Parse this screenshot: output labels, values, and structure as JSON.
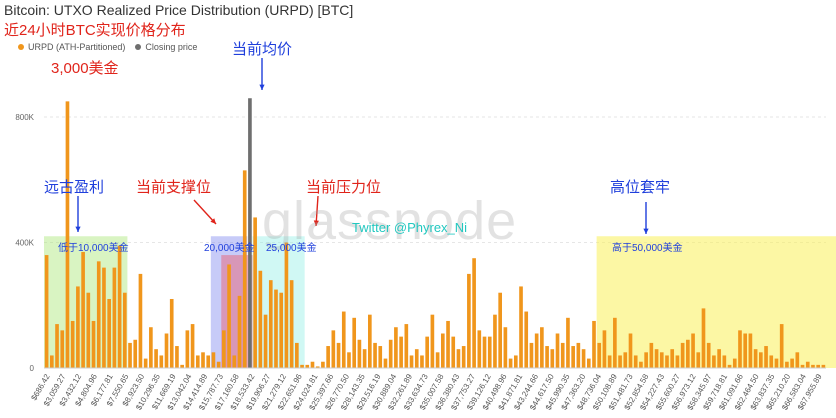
{
  "title": "Bitcoin: UTXO Realized Price Distribution (URPD) [BTC]",
  "subtitle": "近24小时BTC实现价格分布",
  "legend": [
    {
      "label": "URPD (ATH-Partitioned)",
      "color": "#f0961c"
    },
    {
      "label": "Closing price",
      "color": "#6e6e6e"
    }
  ],
  "annotations": {
    "price_3000": "3,000美金",
    "avg_price": "当前均价",
    "ancient_profit": "远古盈利",
    "support": "当前支撑位",
    "resistance": "当前压力位",
    "trapped_high": "高位套牢",
    "below_10000": "低于10,000美金",
    "range_20000": "20,000美金",
    "range_25000": "25,000美金",
    "above_50000": "高于50,000美金",
    "twitter": "Twitter @Phyrex_Ni"
  },
  "watermark": "glassnode",
  "chart_data": {
    "type": "bar",
    "ylim": [
      0,
      950000
    ],
    "yticks": [
      0,
      400000,
      800000
    ],
    "ytick_labels": [
      "0",
      "400K",
      "800K"
    ],
    "xtick_labels": [
      "$686.42",
      "$3,059.27",
      "$3,432.12",
      "$4,804.96",
      "$6,177.81",
      "$7,550.65",
      "$8,923.50",
      "$10,296.35",
      "$11,669.19",
      "$13,042.04",
      "$14,414.89",
      "$15,787.73",
      "$17,160.58",
      "$18,533.42",
      "$19,906.27",
      "$21,279.12",
      "$22,651.96",
      "$24,024.81",
      "$25,397.66",
      "$26,770.50",
      "$28,143.35",
      "$29,516.19",
      "$30,889.04",
      "$32,261.89",
      "$33,634.73",
      "$35,007.58",
      "$36,380.43",
      "$37,753.27",
      "$39,126.12",
      "$40,498.96",
      "$41,871.81",
      "$43,244.66",
      "$44,617.50",
      "$45,990.35",
      "$47,363.20",
      "$48,736.04",
      "$50,108.89",
      "$51,481.73",
      "$52,854.58",
      "$54,227.43",
      "$55,600.27",
      "$56,973.12",
      "$58,345.97",
      "$59,718.81",
      "$61,091.66",
      "$62,464.50",
      "$63,837.35",
      "$65,210.20",
      "$66,583.04",
      "$67,955.89"
    ],
    "values": [
      360000,
      40000,
      140000,
      120000,
      850000,
      150000,
      260000,
      370000,
      240000,
      150000,
      340000,
      320000,
      220000,
      320000,
      390000,
      240000,
      80000,
      90000,
      300000,
      30000,
      130000,
      60000,
      40000,
      110000,
      220000,
      70000,
      10000,
      120000,
      140000,
      40000,
      50000,
      40000,
      50000,
      20000,
      120000,
      330000,
      40000,
      230000,
      630000,
      860000,
      480000,
      310000,
      170000,
      280000,
      250000,
      240000,
      400000,
      280000,
      80000,
      10000,
      10000,
      20000,
      5000,
      20000,
      70000,
      120000,
      80000,
      180000,
      50000,
      160000,
      90000,
      60000,
      170000,
      80000,
      70000,
      30000,
      90000,
      130000,
      100000,
      140000,
      40000,
      60000,
      40000,
      100000,
      170000,
      50000,
      110000,
      150000,
      100000,
      60000,
      70000,
      300000,
      350000,
      120000,
      100000,
      100000,
      170000,
      240000,
      130000,
      30000,
      40000,
      260000,
      180000,
      80000,
      110000,
      130000,
      70000,
      60000,
      110000,
      80000,
      160000,
      70000,
      80000,
      60000,
      30000,
      150000,
      80000,
      120000,
      40000,
      160000,
      40000,
      50000,
      110000,
      40000,
      20000,
      50000,
      80000,
      60000,
      50000,
      40000,
      60000,
      40000,
      80000,
      90000,
      110000,
      50000,
      190000,
      80000,
      40000,
      60000,
      40000,
      10000,
      30000,
      120000,
      110000,
      110000,
      60000,
      50000,
      70000,
      40000,
      30000,
      140000,
      20000,
      30000,
      50000,
      10000,
      20000,
      10000,
      10000,
      10000
    ],
    "closing_bar_index": 39,
    "zones": [
      {
        "from": 0,
        "to": 16,
        "color": "rgba(170,230,120,0.45)",
        "height": 420000
      },
      {
        "from": 32,
        "to": 39,
        "color": "rgba(130,140,240,0.45)",
        "height": 420000
      },
      {
        "from": 34,
        "to": 40,
        "color": "rgba(230,110,130,0.55)",
        "height": 360000
      },
      {
        "from": 40,
        "to": 50,
        "color": "rgba(150,240,230,0.45)",
        "height": 420000
      },
      {
        "from": 106,
        "to": 152,
        "color": "rgba(250,240,90,0.55)",
        "height": 420000
      }
    ]
  }
}
